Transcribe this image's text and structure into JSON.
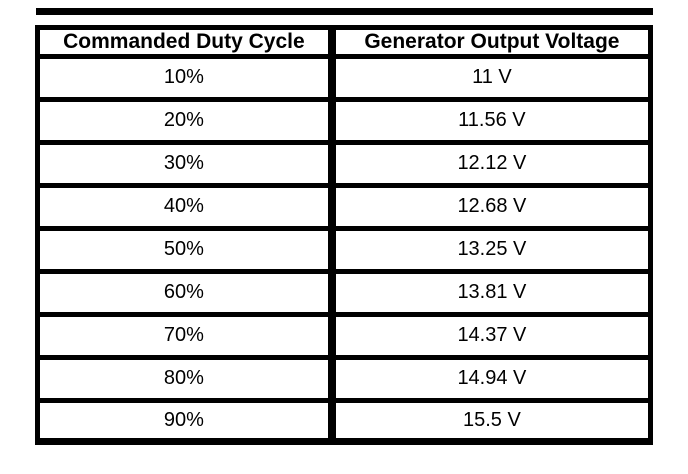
{
  "page": {
    "background": "#ffffff",
    "rule_color": "#000000",
    "border_color": "#000000",
    "text_color": "#000000"
  },
  "table": {
    "columns": [
      "Commanded Duty Cycle",
      "Generator Output Voltage"
    ],
    "rows": [
      [
        "10%",
        "11 V"
      ],
      [
        "20%",
        "11.56 V"
      ],
      [
        "30%",
        "12.12 V"
      ],
      [
        "40%",
        "12.68 V"
      ],
      [
        "50%",
        "13.25 V"
      ],
      [
        "60%",
        "13.81 V"
      ],
      [
        "70%",
        "14.37 V"
      ],
      [
        "80%",
        "14.94 V"
      ],
      [
        "90%",
        "15.5 V"
      ]
    ]
  },
  "chart_data": {
    "type": "table",
    "title": "",
    "columns": [
      "Commanded Duty Cycle",
      "Generator Output Voltage"
    ],
    "duty_cycle_percent": [
      10,
      20,
      30,
      40,
      50,
      60,
      70,
      80,
      90
    ],
    "series": [
      {
        "name": "Generator Output Voltage (V)",
        "values": [
          11,
          11.56,
          12.12,
          12.68,
          13.25,
          13.81,
          14.37,
          14.94,
          15.5
        ]
      }
    ],
    "cell_text": [
      [
        "10%",
        "11 V"
      ],
      [
        "20%",
        "11.56 V"
      ],
      [
        "30%",
        "12.12 V"
      ],
      [
        "40%",
        "12.68 V"
      ],
      [
        "50%",
        "13.25 V"
      ],
      [
        "60%",
        "13.81 V"
      ],
      [
        "70%",
        "14.37 V"
      ],
      [
        "80%",
        "14.94 V"
      ],
      [
        "90%",
        "15.5 V"
      ]
    ],
    "layout": {
      "header_bold": true,
      "cell_alignment": "center",
      "grid": "heavy black borders, thick detached rule above table and thick bottom border"
    }
  }
}
